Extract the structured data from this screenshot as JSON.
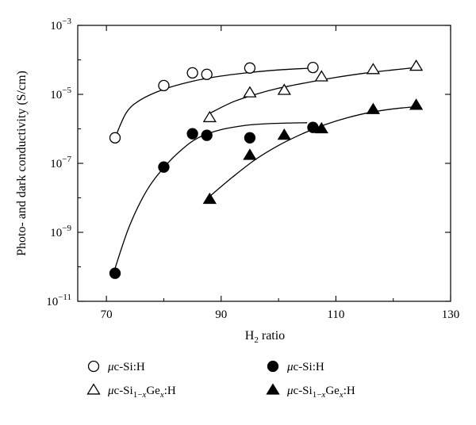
{
  "chart_data": {
    "type": "scatter",
    "xlabel_main": "H",
    "xlabel_sub": "2",
    "xlabel_rest": " ratio",
    "ylabel": "Photo- and dark conductivity (S/cm)",
    "xlim": [
      65,
      130
    ],
    "ylim_log10": [
      -11,
      -3
    ],
    "y_scale": "log",
    "grid": false,
    "x_ticks": [
      {
        "value": 70,
        "label": "70"
      },
      {
        "value": 90,
        "label": "90"
      },
      {
        "value": 110,
        "label": "110"
      },
      {
        "value": 130,
        "label": "130"
      }
    ],
    "y_ticks": [
      {
        "exp": -11,
        "base": "10",
        "sup": "−11"
      },
      {
        "exp": -9,
        "base": "10",
        "sup": "−9"
      },
      {
        "exp": -7,
        "base": "10",
        "sup": "−7"
      },
      {
        "exp": -5,
        "base": "10",
        "sup": "−5"
      },
      {
        "exp": -3,
        "base": "10",
        "sup": "−3"
      }
    ],
    "legend_placement": "bottom",
    "series": [
      {
        "marker": "open-circle",
        "legend_label": "μc-Si:H",
        "points": [
          [
            71.5,
            5.5e-07
          ],
          [
            80,
            1.8e-05
          ],
          [
            85,
            4.2e-05
          ],
          [
            87.5,
            3.8e-05
          ],
          [
            95,
            5.8e-05
          ],
          [
            106,
            6e-05
          ]
        ],
        "curve": [
          [
            71.5,
            5.5e-07
          ],
          [
            73.5,
            3e-06
          ],
          [
            76,
            7e-06
          ],
          [
            80,
            1.4e-05
          ],
          [
            85,
            2.4e-05
          ],
          [
            90,
            3.4e-05
          ],
          [
            95,
            4.3e-05
          ],
          [
            100,
            5.1e-05
          ],
          [
            106,
            5.8e-05
          ]
        ]
      },
      {
        "marker": "open-triangle",
        "legend_label_parts": [
          "μc-Si",
          "1−",
          "x",
          "Ge",
          "x",
          ":H"
        ],
        "points": [
          [
            88,
            2.1e-06
          ],
          [
            95,
            1.1e-05
          ],
          [
            101,
            1.3e-05
          ],
          [
            107.5,
            3.2e-05
          ],
          [
            116.5,
            5.2e-05
          ],
          [
            124,
            6.5e-05
          ]
        ],
        "curve": [
          [
            88,
            2.8e-06
          ],
          [
            92,
            6e-06
          ],
          [
            96,
            1e-05
          ],
          [
            100,
            1.5e-05
          ],
          [
            105,
            2.2e-05
          ],
          [
            110,
            3.1e-05
          ],
          [
            115,
            4.1e-05
          ],
          [
            120,
            5.1e-05
          ],
          [
            124,
            6e-05
          ]
        ]
      },
      {
        "marker": "filled-circle",
        "legend_label": "μc-Si:H",
        "points": [
          [
            71.5,
            6.5e-11
          ],
          [
            80,
            7.8e-08
          ],
          [
            85,
            7.2e-07
          ],
          [
            87.5,
            6.5e-07
          ],
          [
            95,
            5.5e-07
          ],
          [
            106,
            1.1e-06
          ]
        ],
        "curve": [
          [
            71.5,
            9e-11
          ],
          [
            74,
            1.5e-09
          ],
          [
            77,
            1.6e-08
          ],
          [
            80,
            7.5e-08
          ],
          [
            83,
            2.4e-07
          ],
          [
            86,
            5.5e-07
          ],
          [
            90,
            9.5e-07
          ],
          [
            95,
            1.3e-06
          ],
          [
            100,
            1.45e-06
          ],
          [
            105,
            1.5e-06
          ]
        ]
      },
      {
        "marker": "filled-triangle",
        "legend_label_parts": [
          "μc-Si",
          "1−",
          "x",
          "Ge",
          "x",
          ":H"
        ],
        "points": [
          [
            88,
            9e-09
          ],
          [
            95,
            1.7e-07
          ],
          [
            101,
            6.5e-07
          ],
          [
            107.5,
            1e-06
          ],
          [
            116.5,
            3.6e-06
          ],
          [
            124,
            4.8e-06
          ]
        ],
        "curve": [
          [
            88,
            1.1e-08
          ],
          [
            92,
            4e-08
          ],
          [
            96,
            1.3e-07
          ],
          [
            100,
            3.3e-07
          ],
          [
            104,
            7e-07
          ],
          [
            108,
            1.3e-06
          ],
          [
            112,
            2.1e-06
          ],
          [
            116,
            3e-06
          ],
          [
            120,
            3.8e-06
          ],
          [
            124,
            4.4e-06
          ]
        ]
      }
    ]
  }
}
